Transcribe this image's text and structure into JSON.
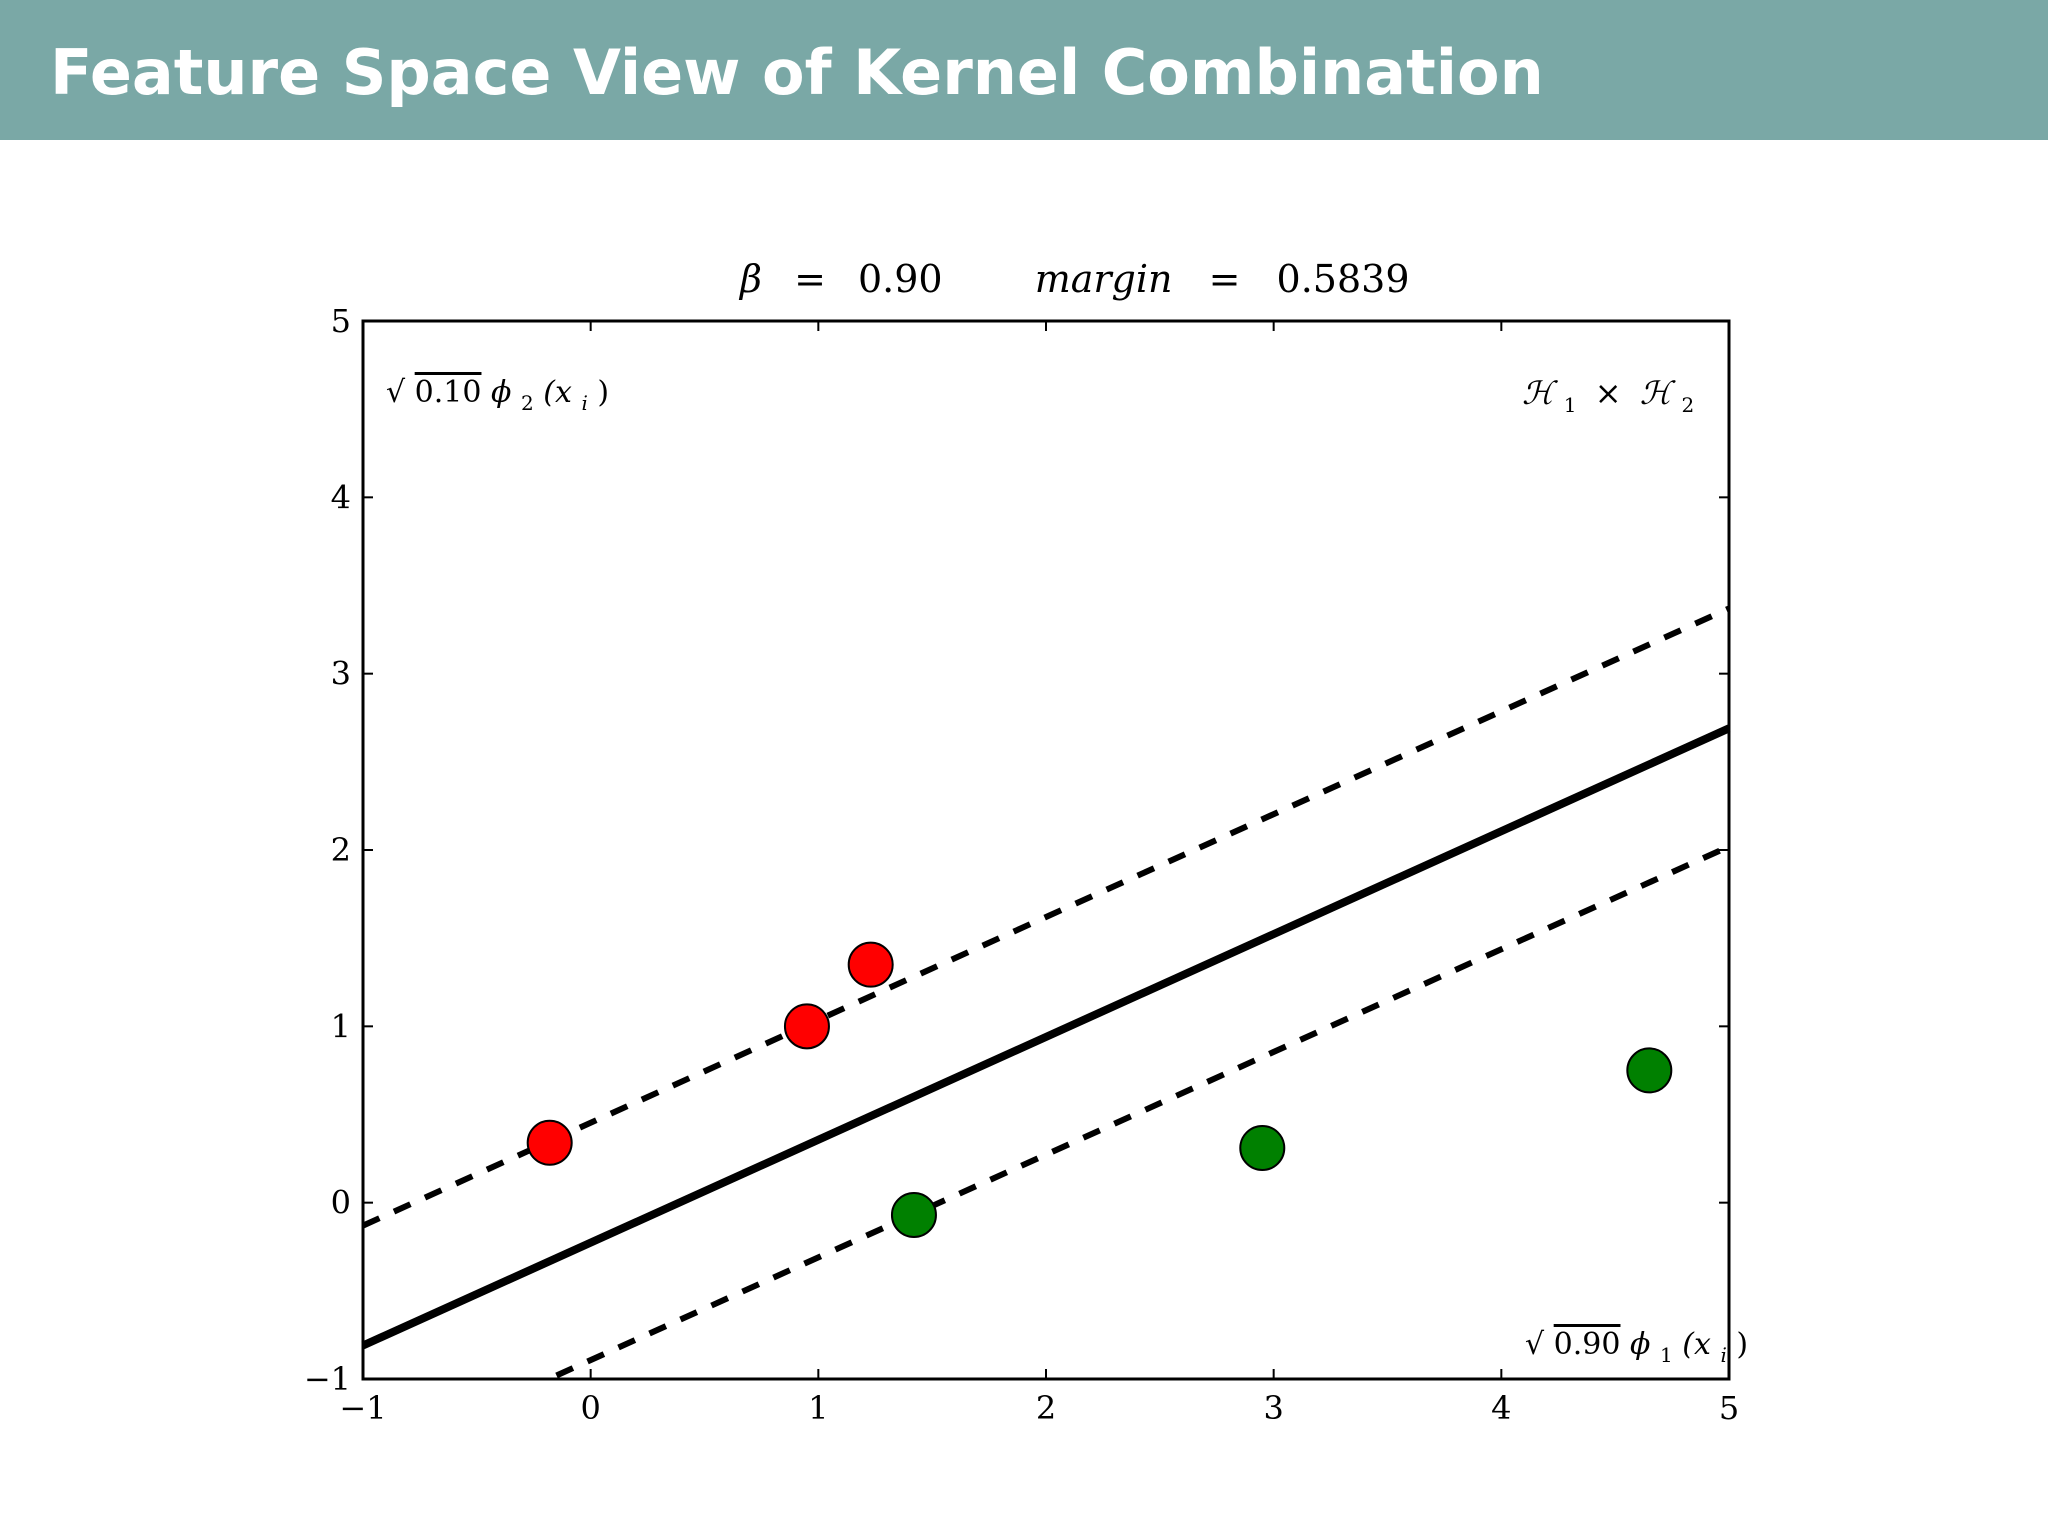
{
  "slide": {
    "title": "Feature Space View of Kernel Combination",
    "header_color": "#7aa8a6"
  },
  "chart_data": {
    "type": "scatter",
    "title": {
      "beta_symbol": "β",
      "equals": "=",
      "beta_value": "0.90",
      "margin_label": "margin",
      "margin_value": "0.5839"
    },
    "xlim": [
      -1,
      5
    ],
    "ylim": [
      -1,
      5
    ],
    "x_ticks": [
      -1,
      0,
      1,
      2,
      3,
      4,
      5
    ],
    "y_ticks": [
      -1,
      0,
      1,
      2,
      3,
      4,
      5
    ],
    "x_tick_labels": [
      "−1",
      "0",
      "1",
      "2",
      "3",
      "4",
      "5"
    ],
    "y_tick_labels": [
      "−1",
      "0",
      "1",
      "2",
      "3",
      "4",
      "5"
    ],
    "annotations": {
      "top_left": {
        "sqrt": "√",
        "radicand": "0.10",
        "feature": "ϕ",
        "sub": "2",
        "args": "(x",
        "args_sub": "i",
        "close": ")"
      },
      "top_right": {
        "h1": "ℋ",
        "h1_sub": "1",
        "times": "×",
        "h2": "ℋ",
        "h2_sub": "2"
      },
      "bottom_right": {
        "sqrt": "√",
        "radicand": "0.90",
        "feature": "ϕ",
        "sub": "1",
        "args": "(x",
        "args_sub": "i",
        "close": ")"
      }
    },
    "series": [
      {
        "color": "#ff0000",
        "points": [
          {
            "x": -0.18,
            "y": 0.34
          },
          {
            "x": 0.95,
            "y": 1.0
          },
          {
            "x": 1.23,
            "y": 1.35
          }
        ]
      },
      {
        "color": "#008000",
        "points": [
          {
            "x": 1.42,
            "y": -0.07
          },
          {
            "x": 2.95,
            "y": 0.31
          },
          {
            "x": 4.65,
            "y": 0.75
          }
        ]
      }
    ],
    "lines": [
      {
        "style": "solid",
        "from": {
          "x": -1,
          "y": -0.81
        },
        "to": {
          "x": 5,
          "y": 2.69
        }
      },
      {
        "style": "dashed",
        "from": {
          "x": -1,
          "y": -0.13
        },
        "to": {
          "x": 5,
          "y": 3.37
        }
      },
      {
        "style": "dashed",
        "from": {
          "x": -0.15,
          "y": -0.98
        },
        "to": {
          "x": 5,
          "y": 2.02
        }
      }
    ]
  }
}
